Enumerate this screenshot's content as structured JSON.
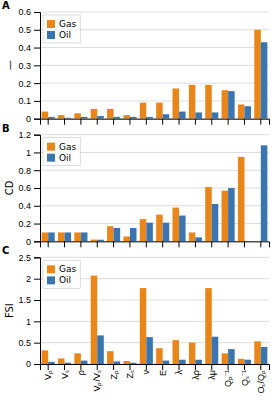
{
  "chart_data": [
    {
      "type": "bar",
      "title": "A",
      "y_label": "—",
      "categories": [
        "Vₚ",
        "Vₛ",
        "ρ",
        "Vₚ/Vₛ",
        "Zₚ",
        "Zₛ",
        "ν",
        "E",
        "λ",
        "λρ",
        "λμ",
        "Qₚ⁻¹",
        "Qₛ⁻¹",
        "Oₛ/Qₚ"
      ],
      "series": [
        {
          "name": "Gas",
          "color": "#E8861A",
          "values": [
            0.04,
            0.02,
            0.03,
            0.055,
            0.055,
            0.02,
            0.09,
            0.09,
            0.17,
            0.19,
            0.19,
            0.16,
            0.08,
            0.5
          ]
        },
        {
          "name": "Oil",
          "color": "#3A75B0",
          "values": [
            0.01,
            0.005,
            0.01,
            0.015,
            0.01,
            0.01,
            0.01,
            0.025,
            0.04,
            0.035,
            0.035,
            0.155,
            0.07,
            0.43
          ]
        }
      ],
      "ylim": [
        0,
        0.6
      ],
      "yticks": [
        0,
        0.1,
        0.2,
        0.3,
        0.4,
        0.5,
        0.6
      ],
      "grid": true,
      "legend": "upper left",
      "tick_labels": "y"
    },
    {
      "type": "bar",
      "title": "B",
      "y_label": "CD",
      "categories": [
        "Vₚ",
        "Vₛ",
        "ρ",
        "Vₚ/Vₛ",
        "Zₚ",
        "Zₛ",
        "ν",
        "E",
        "λ",
        "λρ",
        "λμ",
        "Qₚ⁻¹",
        "Qₛ⁻¹",
        "Oₛ/Qₚ"
      ],
      "series": [
        {
          "name": "Gas",
          "color": "#E8861A",
          "values": [
            0.1,
            0.1,
            0.1,
            0.02,
            0.17,
            0.055,
            0.25,
            0.3,
            0.38,
            0.1,
            0.61,
            0.57,
            0.95,
            0.0
          ]
        },
        {
          "name": "Oil",
          "color": "#3A75B0",
          "values": [
            0.1,
            0.1,
            0.1,
            0.018,
            0.15,
            0.15,
            0.21,
            0.21,
            0.29,
            0.045,
            0.42,
            0.6,
            0.0,
            1.08
          ]
        }
      ],
      "ylim": [
        0,
        1.2
      ],
      "yticks": [
        0,
        0.2,
        0.4,
        0.6,
        0.8,
        1,
        1.2
      ],
      "grid": true,
      "legend": "upper left",
      "tick_labels": "y"
    },
    {
      "type": "bar",
      "title": "C",
      "y_label": "FSI",
      "categories": [
        "Vₚ",
        "Vₛ",
        "ρ",
        "Vₚ/Vₛ",
        "Zₚ",
        "Zₛ",
        "ν",
        "E",
        "λ",
        "λρ",
        "λμ",
        "Qₚ⁻¹",
        "Qₛ⁻¹",
        "Oₛ/Qₚ"
      ],
      "series": [
        {
          "name": "Gas",
          "color": "#E8861A",
          "values": [
            0.32,
            0.13,
            0.25,
            2.07,
            0.3,
            0.07,
            1.78,
            0.37,
            0.56,
            0.5,
            1.78,
            0.25,
            0.12,
            0.53
          ]
        },
        {
          "name": "Oil",
          "color": "#3A75B0",
          "values": [
            0.05,
            0.03,
            0.08,
            0.67,
            0.06,
            0.03,
            0.63,
            0.08,
            0.1,
            0.1,
            0.64,
            0.35,
            0.1,
            0.4
          ]
        }
      ],
      "ylim": [
        0,
        2.5
      ],
      "yticks": [
        0,
        0.5,
        1,
        1.5,
        2,
        2.5
      ],
      "grid": true,
      "legend": "upper left"
    }
  ]
}
